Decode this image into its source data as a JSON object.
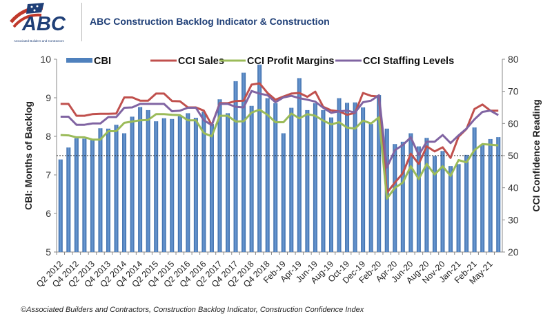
{
  "header": {
    "logo_text": "ABC",
    "logo_subtext": "Associated Builders and Contractors",
    "title": "ABC Construction Backlog Indicator & Construction"
  },
  "footer": "©Associated Builders and Contractors, Construction Backlog Indicator, Construction Confidence Index",
  "chart_data": {
    "type": "bar+line",
    "title": "ABC Construction Backlog Indicator & Construction",
    "ylabel": "CBI: Months of Backlog",
    "y2label": "CCI Confidence Reading",
    "ylim": [
      5,
      10
    ],
    "y2lim": [
      20,
      80
    ],
    "yticks": [
      5,
      6,
      7,
      8,
      9,
      10
    ],
    "y2ticks": [
      20,
      30,
      40,
      50,
      60,
      70,
      80
    ],
    "reference_line": {
      "axis": "y2",
      "value": 50,
      "style": "dotted"
    },
    "legend_position": "top",
    "categories": [
      "Q2 2012",
      "",
      "Q4 2012",
      "",
      "Q2 2013",
      "",
      "Q4 2013",
      "",
      "Q2 2014",
      "",
      "Q4 2014",
      "",
      "Q2 2015",
      "",
      "Q4 2015",
      "",
      "Q2 2016",
      "",
      "Q4 2016",
      "",
      "Q2 2017",
      "",
      "Q4 2017",
      "",
      "Q2 2018",
      "",
      "Q4 2018",
      "",
      "Feb-19",
      "",
      "Apr-19",
      "",
      "Jun-19",
      "",
      "Aug-19",
      "",
      "Oct-19",
      "",
      "Dec-19",
      "",
      "Feb-20",
      "",
      "Apr-20",
      "",
      "Jun-20",
      "",
      "Aug-20",
      "",
      "Nov-20",
      "",
      "Jan-21",
      "",
      "Feb-21",
      "",
      "May-21",
      ""
    ],
    "series": [
      {
        "name": "CBI",
        "type": "bar",
        "axis": "y",
        "color": "#4f81bd",
        "values": [
          7.4,
          7.71,
          7.95,
          7.94,
          7.91,
          8.21,
          8.2,
          8.3,
          8.08,
          8.51,
          8.76,
          8.68,
          8.39,
          8.47,
          8.45,
          8.52,
          8.6,
          8.48,
          8.64,
          8.32,
          8.96,
          8.6,
          9.43,
          9.65,
          8.79,
          9.86,
          8.99,
          8.86,
          8.08,
          8.74,
          9.51,
          8.68,
          8.86,
          8.68,
          8.49,
          8.99,
          8.87,
          8.88,
          8.75,
          8.32,
          9.07,
          8.2,
          7.8,
          7.86,
          8.08,
          7.74,
          7.96,
          7.49,
          7.62,
          7.23,
          7.28,
          7.52,
          8.23,
          7.79,
          7.93,
          7.98
        ]
      },
      {
        "name": "CCI Sales",
        "type": "line",
        "axis": "y2",
        "color": "#c0504d",
        "values": [
          66.1,
          66.1,
          62.4,
          62.4,
          62.9,
          63.0,
          63.0,
          63.1,
          68.1,
          68.1,
          67.1,
          67.1,
          69.3,
          69.3,
          67.0,
          66.9,
          65.0,
          65.0,
          64.0,
          59.5,
          66.3,
          66.3,
          67.0,
          67.1,
          72.1,
          72.5,
          69.5,
          67.4,
          68.4,
          69.3,
          69.5,
          68.3,
          69.9,
          65.2,
          64.1,
          63.8,
          62.7,
          63.3,
          69.5,
          68.6,
          68.4,
          38.4,
          41.6,
          44.5,
          50.6,
          47.4,
          52.9,
          51.3,
          52.6,
          49.3,
          55.9,
          58.3,
          64.5,
          65.9,
          64.0,
          64.0
        ]
      },
      {
        "name": "CCI Profit Margins",
        "type": "line",
        "axis": "y2",
        "color": "#9bbb59",
        "values": [
          56.4,
          56.3,
          55.7,
          55.7,
          55.0,
          55.0,
          57.6,
          57.6,
          60.2,
          60.6,
          61.0,
          61.1,
          62.9,
          62.9,
          62.7,
          62.6,
          61.0,
          61.0,
          57.0,
          56.0,
          62.4,
          62.4,
          60.6,
          60.7,
          63.4,
          64.3,
          62.7,
          60.4,
          60.4,
          63.1,
          61.6,
          62.9,
          62.4,
          60.9,
          59.7,
          60.4,
          58.7,
          58.4,
          60.9,
          60.0,
          61.9,
          36.6,
          40.0,
          41.6,
          46.7,
          42.7,
          47.4,
          44.1,
          46.7,
          43.7,
          48.6,
          47.9,
          51.7,
          53.6,
          53.4,
          53.2
        ]
      },
      {
        "name": "CCI Staffing Levels",
        "type": "line",
        "axis": "y2",
        "color": "#8064a2",
        "values": [
          62.1,
          62.1,
          59.6,
          59.6,
          60.0,
          60.0,
          62.0,
          62.0,
          64.9,
          65.0,
          66.1,
          66.1,
          66.1,
          66.1,
          63.8,
          64.0,
          64.9,
          64.9,
          61.0,
          59.5,
          66.1,
          66.1,
          65.2,
          65.0,
          70.1,
          69.3,
          68.8,
          66.6,
          68.1,
          68.6,
          67.9,
          67.4,
          66.8,
          64.9,
          63.3,
          63.8,
          64.0,
          63.4,
          66.6,
          67.1,
          68.8,
          46.3,
          51.7,
          53.3,
          55.7,
          50.2,
          54.3,
          54.3,
          56.4,
          53.9,
          56.3,
          58.4,
          61.3,
          63.6,
          64.0,
          62.6
        ]
      }
    ]
  }
}
